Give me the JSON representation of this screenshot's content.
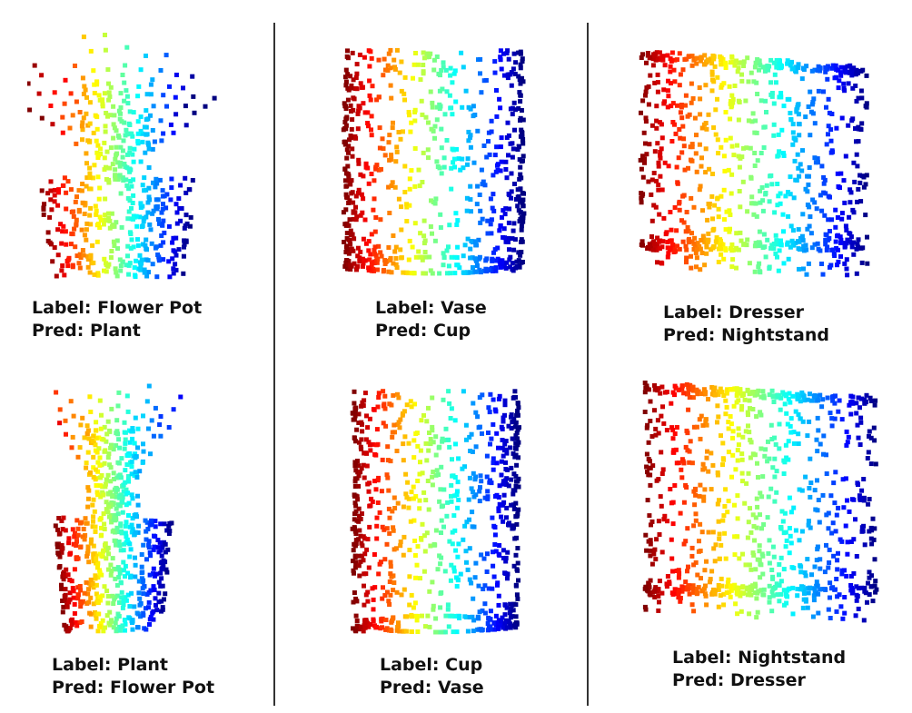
{
  "panels": [
    {
      "id": "p1",
      "label": "Label: Flower Pot",
      "pred": "Pred: Plant",
      "shape": "plant-pot-wide"
    },
    {
      "id": "p2",
      "label": "Label: Vase",
      "pred": "Pred: Cup",
      "shape": "cylinder"
    },
    {
      "id": "p3",
      "label": "Label: Dresser",
      "pred": "Pred: Nightstand",
      "shape": "box"
    },
    {
      "id": "p4",
      "label": "Label: Plant",
      "pred": "Pred: Flower Pot",
      "shape": "plant-pot-tall"
    },
    {
      "id": "p5",
      "label": "Label: Cup",
      "pred": "Pred: Vase",
      "shape": "cylinder"
    },
    {
      "id": "p6",
      "label": "Label: Nightstand",
      "pred": "Pred: Dresser",
      "shape": "box"
    }
  ],
  "colormap": "jet"
}
